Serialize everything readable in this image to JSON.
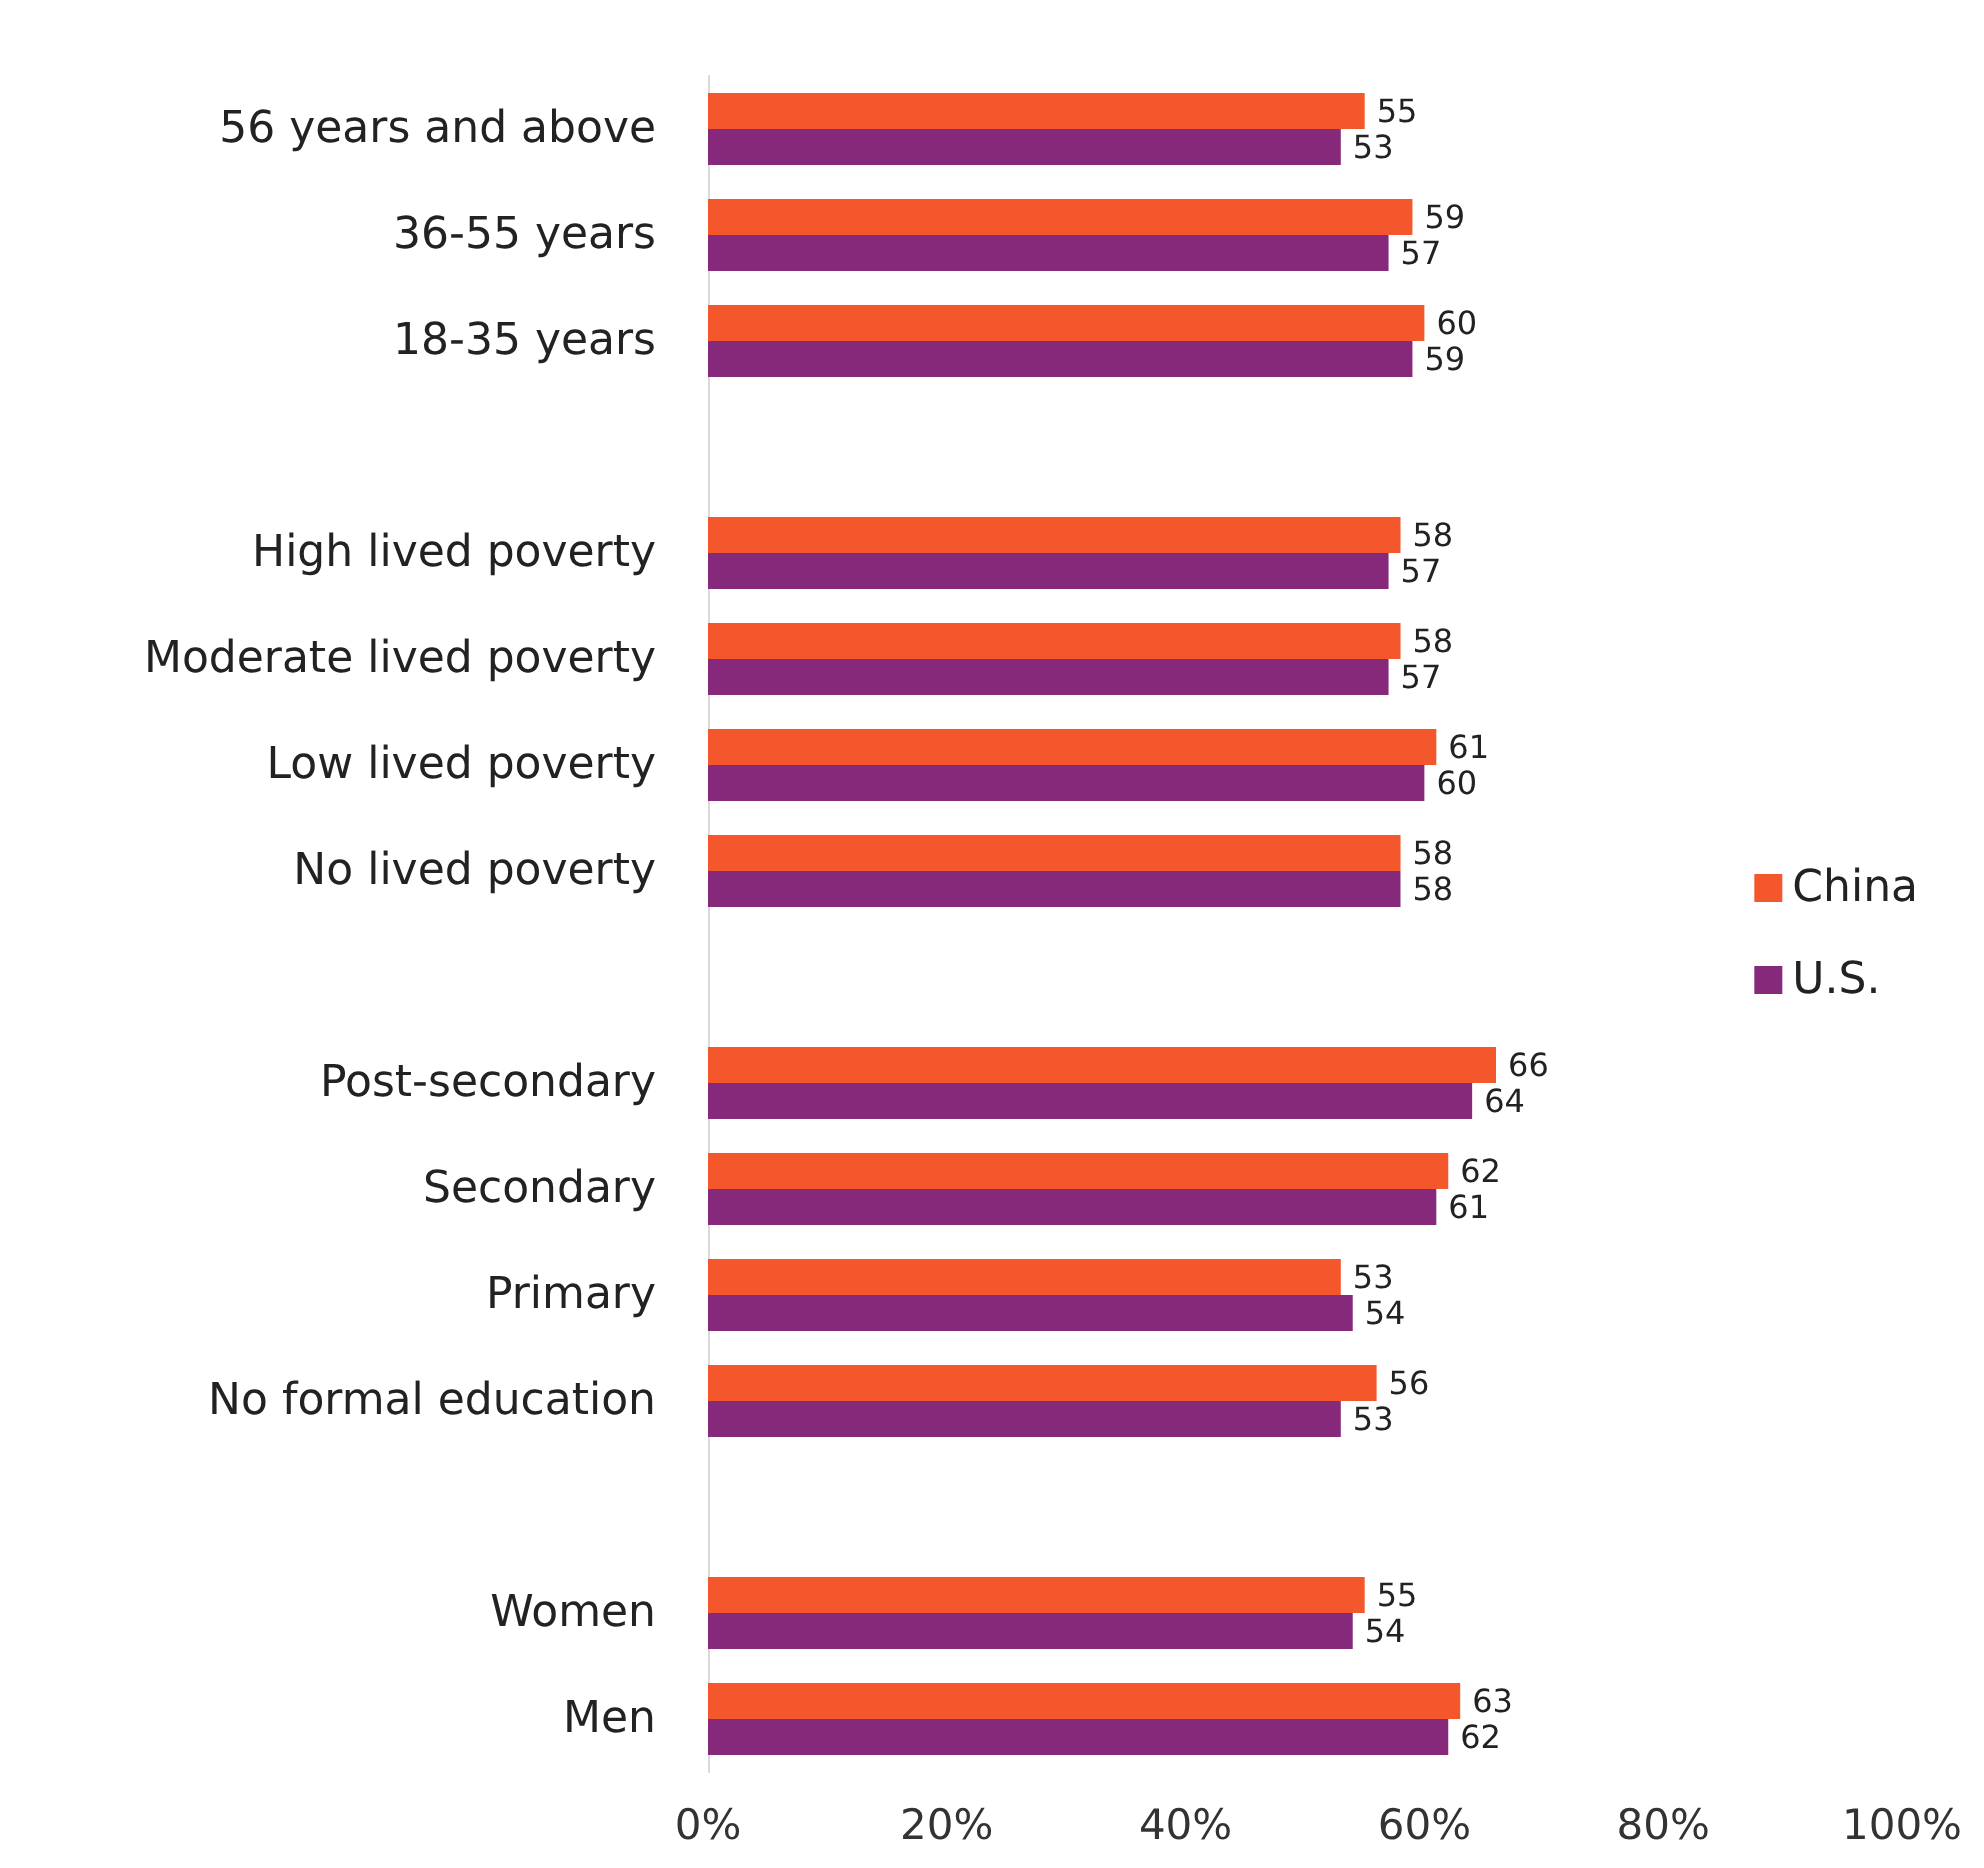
{
  "chart_data": {
    "type": "bar",
    "orientation": "horizontal",
    "categories": [
      "56 years and above",
      "36-55 years",
      "18-35 years",
      null,
      "High lived poverty",
      "Moderate lived poverty",
      "Low lived poverty",
      "No lived poverty",
      null,
      "Post-secondary",
      "Secondary",
      "Primary",
      "No formal education",
      null,
      "Women",
      "Men"
    ],
    "series": [
      {
        "name": "China",
        "color": "#f4572b",
        "values": [
          55,
          59,
          60,
          null,
          58,
          58,
          61,
          58,
          null,
          66,
          62,
          53,
          56,
          null,
          55,
          63
        ]
      },
      {
        "name": "U.S.",
        "color": "#87297a",
        "values": [
          53,
          57,
          59,
          null,
          57,
          57,
          60,
          58,
          null,
          64,
          61,
          54,
          53,
          null,
          54,
          62
        ]
      }
    ],
    "xlim": [
      0,
      100
    ],
    "xticks": [
      {
        "value": 0,
        "label": "0%"
      },
      {
        "value": 20,
        "label": "20%"
      },
      {
        "value": 40,
        "label": "40%"
      },
      {
        "value": 60,
        "label": "60%"
      },
      {
        "value": 80,
        "label": "80%"
      },
      {
        "value": 100,
        "label": "100%"
      }
    ],
    "data_labels": true,
    "grid": false,
    "legend": "right"
  }
}
